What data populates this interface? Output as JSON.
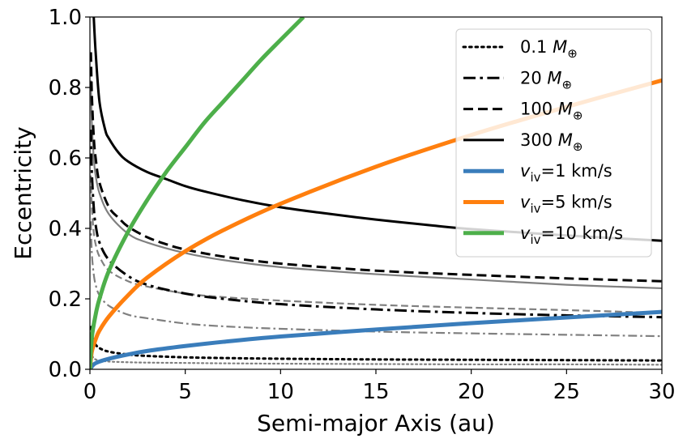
{
  "chart_data": {
    "type": "line",
    "title": "",
    "xlabel": "Semi-major Axis (au)",
    "ylabel": "Eccentricity",
    "xlim": [
      0,
      30
    ],
    "ylim": [
      0,
      1
    ],
    "xticks": [
      0,
      5,
      10,
      15,
      20,
      25,
      30
    ],
    "yticks": [
      0.0,
      0.2,
      0.4,
      0.6,
      0.8,
      1.0
    ],
    "xtick_labels": [
      "0",
      "5",
      "10",
      "15",
      "20",
      "25",
      "30"
    ],
    "ytick_labels": [
      "0.0",
      "0.2",
      "0.4",
      "0.6",
      "0.8",
      "1.0"
    ],
    "grid": false,
    "legend_position": "top-right",
    "legend": [
      {
        "label_main": "0.1 ",
        "label_italic": "M",
        "label_sub": "⊕",
        "label_tail": "",
        "color": "#000000",
        "dash": "dotted",
        "width": 3
      },
      {
        "label_main": "20 ",
        "label_italic": "M",
        "label_sub": "⊕",
        "label_tail": "",
        "color": "#000000",
        "dash": "dashdot",
        "width": 3
      },
      {
        "label_main": "100 ",
        "label_italic": "M",
        "label_sub": "⊕",
        "label_tail": "",
        "color": "#000000",
        "dash": "dashed",
        "width": 3
      },
      {
        "label_main": "300 ",
        "label_italic": "M",
        "label_sub": "⊕",
        "label_tail": "",
        "color": "#000000",
        "dash": "solid",
        "width": 3
      },
      {
        "label_main": "",
        "label_italic": "v",
        "label_sub": "iv",
        "label_tail": "=1 km/s",
        "color": "#3a7dbb",
        "dash": "solid",
        "width": 5
      },
      {
        "label_main": "",
        "label_italic": "v",
        "label_sub": "iv",
        "label_tail": "=5 km/s",
        "color": "#ff7f0e",
        "dash": "solid",
        "width": 5
      },
      {
        "label_main": "",
        "label_italic": "v",
        "label_sub": "iv",
        "label_tail": "=10 km/s",
        "color": "#4daf4a",
        "dash": "solid",
        "width": 5
      }
    ],
    "series": [
      {
        "group": "mass",
        "mass": "300",
        "shade": "black",
        "color": "#000000",
        "dash": "solid",
        "width": 3,
        "x": [
          0.2,
          0.3,
          0.5,
          0.8,
          1,
          1.5,
          2,
          3,
          4,
          5,
          6,
          8,
          10,
          12,
          15,
          18,
          20,
          25,
          30
        ],
        "y": [
          1.0,
          0.9,
          0.76,
          0.68,
          0.655,
          0.615,
          0.59,
          0.56,
          0.54,
          0.52,
          0.505,
          0.48,
          0.46,
          0.445,
          0.425,
          0.408,
          0.398,
          0.38,
          0.365
        ]
      },
      {
        "group": "mass",
        "mass": "100",
        "shade": "black",
        "color": "#000000",
        "dash": "dashed",
        "width": 3,
        "x": [
          0.05,
          0.1,
          0.2,
          0.3,
          0.5,
          1,
          1.5,
          2,
          3,
          4,
          5,
          7,
          10,
          15,
          20,
          25,
          30
        ],
        "y": [
          0.9,
          0.78,
          0.66,
          0.6,
          0.53,
          0.46,
          0.43,
          0.405,
          0.375,
          0.355,
          0.34,
          0.32,
          0.3,
          0.28,
          0.268,
          0.258,
          0.25
        ]
      },
      {
        "group": "mass",
        "mass": "20",
        "shade": "black",
        "color": "#000000",
        "dash": "dashdot",
        "width": 3,
        "x": [
          0.05,
          0.1,
          0.2,
          0.3,
          0.5,
          1,
          2,
          3,
          5,
          7,
          10,
          15,
          20,
          25,
          30
        ],
        "y": [
          0.68,
          0.56,
          0.46,
          0.41,
          0.36,
          0.31,
          0.265,
          0.24,
          0.215,
          0.2,
          0.185,
          0.17,
          0.16,
          0.153,
          0.148
        ]
      },
      {
        "group": "mass",
        "mass": "0.1",
        "shade": "black",
        "color": "#000000",
        "dash": "dotted",
        "width": 3,
        "x": [
          0.05,
          0.1,
          0.2,
          0.3,
          0.5,
          1,
          2,
          3,
          5,
          7,
          10,
          15,
          20,
          25,
          30
        ],
        "y": [
          0.12,
          0.1,
          0.08,
          0.07,
          0.06,
          0.05,
          0.042,
          0.038,
          0.034,
          0.032,
          0.03,
          0.028,
          0.027,
          0.026,
          0.025
        ]
      },
      {
        "group": "mass",
        "mass": "300",
        "shade": "gray",
        "color": "#808080",
        "dash": "solid",
        "width": 2.2,
        "x": [
          0.05,
          0.1,
          0.2,
          0.3,
          0.5,
          1,
          2,
          3,
          5,
          7,
          10,
          15,
          20,
          25,
          30
        ],
        "y": [
          0.82,
          0.7,
          0.6,
          0.55,
          0.5,
          0.44,
          0.385,
          0.36,
          0.33,
          0.31,
          0.29,
          0.27,
          0.255,
          0.24,
          0.23
        ]
      },
      {
        "group": "mass",
        "mass": "100",
        "shade": "gray",
        "color": "#808080",
        "dash": "dashed",
        "width": 2.2,
        "x": [
          0.05,
          0.1,
          0.2,
          0.3,
          0.5,
          1,
          2,
          3,
          5,
          7,
          10,
          15,
          20,
          25,
          30
        ],
        "y": [
          0.55,
          0.46,
          0.39,
          0.355,
          0.32,
          0.28,
          0.25,
          0.235,
          0.215,
          0.205,
          0.195,
          0.183,
          0.175,
          0.168,
          0.16
        ]
      },
      {
        "group": "mass",
        "mass": "20",
        "shade": "gray",
        "color": "#808080",
        "dash": "dashdot",
        "width": 2.2,
        "x": [
          0.05,
          0.1,
          0.2,
          0.3,
          0.5,
          1,
          2,
          3,
          5,
          7,
          10,
          15,
          20,
          25,
          30
        ],
        "y": [
          0.42,
          0.33,
          0.27,
          0.24,
          0.21,
          0.18,
          0.155,
          0.145,
          0.13,
          0.122,
          0.115,
          0.107,
          0.102,
          0.098,
          0.094
        ]
      },
      {
        "group": "mass",
        "mass": "0.1",
        "shade": "gray",
        "color": "#808080",
        "dash": "dotted",
        "width": 2.2,
        "x": [
          0.05,
          0.1,
          0.2,
          0.3,
          0.5,
          1,
          2,
          3,
          5,
          7,
          10,
          15,
          20,
          25,
          30
        ],
        "y": [
          0.05,
          0.04,
          0.032,
          0.028,
          0.025,
          0.022,
          0.02,
          0.019,
          0.018,
          0.017,
          0.016,
          0.015,
          0.014,
          0.014,
          0.013
        ]
      },
      {
        "group": "velocity",
        "color": "#3a7dbb",
        "dash": "solid",
        "width": 5,
        "x": [
          0,
          0.2,
          0.5,
          1,
          2,
          3,
          5,
          7,
          10,
          15,
          20,
          25,
          30
        ],
        "y": [
          0.0,
          0.014,
          0.022,
          0.03,
          0.042,
          0.052,
          0.066,
          0.078,
          0.093,
          0.113,
          0.131,
          0.147,
          0.163
        ]
      },
      {
        "group": "velocity",
        "color": "#ff7f0e",
        "dash": "solid",
        "width": 5,
        "x": [
          0,
          0.1,
          0.3,
          0.5,
          1,
          2,
          3,
          5,
          7,
          10,
          15,
          20,
          25,
          30
        ],
        "y": [
          0.0,
          0.05,
          0.085,
          0.11,
          0.15,
          0.21,
          0.26,
          0.335,
          0.395,
          0.47,
          0.575,
          0.665,
          0.745,
          0.82
        ]
      },
      {
        "group": "velocity",
        "color": "#4daf4a",
        "dash": "solid",
        "width": 5,
        "x": [
          0,
          0.1,
          0.3,
          0.5,
          1,
          2,
          3,
          4,
          5,
          6,
          7,
          8,
          9,
          10,
          11.2
        ],
        "y": [
          0.0,
          0.09,
          0.155,
          0.2,
          0.28,
          0.39,
          0.48,
          0.56,
          0.63,
          0.7,
          0.76,
          0.82,
          0.88,
          0.935,
          1.0
        ]
      }
    ]
  }
}
